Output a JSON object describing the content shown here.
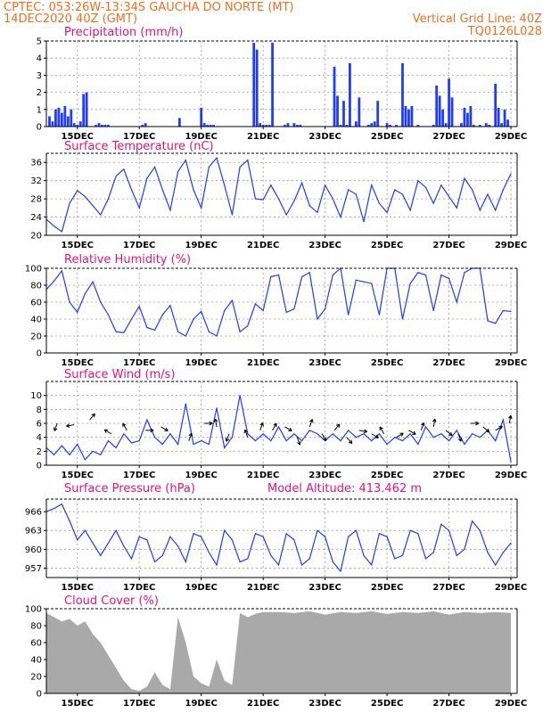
{
  "header": {
    "line1_left": "CPTEC:   053:26W-13:34S   GAUCHA DO NORTE (MT)",
    "line2_left": "14DEC2020 40Z (GMT)",
    "line2_right": "Vertical Grid Line: 40Z",
    "line3_right": "TQ0126L028"
  },
  "colors": {
    "header": "#f26e1f",
    "panel_title": "#e5127d",
    "series": "#1f3bff",
    "cloud": "#a9a9a9",
    "grid": "#9a9a9a"
  },
  "chart_data": [
    {
      "id": "precip",
      "type": "bar",
      "title": "Precipitation (mm/h)",
      "ylim": [
        0,
        5
      ],
      "yticks": [
        0,
        1,
        2,
        3,
        4,
        5
      ],
      "xticks": [
        "15DEC",
        "17DEC",
        "19DEC",
        "21DEC",
        "23DEC",
        "25DEC",
        "27DEC",
        "29DEC"
      ],
      "grid": true,
      "x_days": [
        0.1,
        0.2,
        0.3,
        0.4,
        0.5,
        0.6,
        0.7,
        0.8,
        0.9,
        1.0,
        1.1,
        1.2,
        1.3,
        1.6,
        1.7,
        1.8,
        1.9,
        2.0,
        3.1,
        3.2,
        4.3,
        5.0,
        5.1,
        5.2,
        5.3,
        5.4,
        6.7,
        6.8,
        6.9,
        7.0,
        7.1,
        7.2,
        7.3,
        7.7,
        7.8,
        8.0,
        8.1,
        8.2,
        9.3,
        9.4,
        9.5,
        9.6,
        9.7,
        9.8,
        10.0,
        10.1,
        10.4,
        10.5,
        10.6,
        10.7,
        11.0,
        11.1,
        11.3,
        11.5,
        11.6,
        11.7,
        11.8,
        12.0,
        12.5,
        12.6,
        12.7,
        12.8,
        12.9,
        13.0,
        13.1,
        13.4,
        13.5,
        13.6,
        13.7,
        13.8,
        14.0,
        14.2,
        14.3,
        14.5,
        14.6,
        14.7,
        14.8,
        14.9
      ],
      "values": [
        0.6,
        0.3,
        1.0,
        1.1,
        0.8,
        1.2,
        0.6,
        1.0,
        0.2,
        0.1,
        0.3,
        1.9,
        2.0,
        0.1,
        0.2,
        0.1,
        0.1,
        0.1,
        0.1,
        0.2,
        0.5,
        1.1,
        0.2,
        0.1,
        0.1,
        0.1,
        4.9,
        4.5,
        0.2,
        0.1,
        0.1,
        0.1,
        4.9,
        0.1,
        0.2,
        0.2,
        0.1,
        0.1,
        3.5,
        1.8,
        0.1,
        1.5,
        0.1,
        3.7,
        0.3,
        1.7,
        0.1,
        0.2,
        0.3,
        1.5,
        0.2,
        0.1,
        0.1,
        3.7,
        1.2,
        1.0,
        1.2,
        0.1,
        0.1,
        2.4,
        1.8,
        1.0,
        0.2,
        2.8,
        1.7,
        0.2,
        1.1,
        0.8,
        1.2,
        0.1,
        0.1,
        0.2,
        0.1,
        2.5,
        1.1,
        0.2,
        1.0,
        0.4
      ]
    },
    {
      "id": "temp",
      "type": "line",
      "title": "Surface Temperature (nC)",
      "ylim": [
        20,
        38
      ],
      "yticks": [
        20,
        24,
        28,
        32,
        36
      ],
      "xticks": [
        "15DEC",
        "17DEC",
        "19DEC",
        "21DEC",
        "23DEC",
        "25DEC",
        "27DEC",
        "29DEC"
      ],
      "grid": true,
      "x_days": [
        0,
        0.25,
        0.5,
        0.75,
        1.0,
        1.25,
        1.5,
        1.75,
        2.0,
        2.25,
        2.5,
        2.75,
        3.0,
        3.25,
        3.5,
        3.75,
        4.0,
        4.25,
        4.5,
        4.75,
        5.0,
        5.25,
        5.5,
        5.75,
        6.0,
        6.25,
        6.5,
        6.75,
        7.0,
        7.25,
        7.5,
        7.75,
        8.0,
        8.25,
        8.5,
        8.75,
        9.0,
        9.25,
        9.5,
        9.75,
        10.0,
        10.25,
        10.5,
        10.75,
        11.0,
        11.25,
        11.5,
        11.75,
        12.0,
        12.25,
        12.5,
        12.75,
        13.0,
        13.25,
        13.5,
        13.75,
        14.0,
        14.25,
        14.5,
        14.75,
        15.0
      ],
      "values": [
        23.5,
        22.0,
        20.8,
        27.0,
        29.8,
        28.5,
        26.5,
        24.5,
        28.0,
        33.0,
        34.5,
        30.0,
        26.0,
        32.5,
        35.0,
        30.0,
        25.5,
        34.0,
        36.5,
        30.0,
        26.0,
        35.0,
        37.0,
        31.0,
        24.5,
        35.0,
        36.5,
        28.0,
        27.8,
        31.0,
        28.0,
        24.5,
        27.5,
        31.5,
        26.5,
        25.0,
        31.0,
        28.0,
        24.0,
        30.0,
        29.0,
        23.0,
        31.0,
        27.0,
        25.0,
        30.0,
        29.0,
        25.5,
        32.0,
        30.5,
        27.0,
        31.0,
        28.5,
        26.0,
        32.5,
        30.0,
        25.5,
        29.0,
        25.5,
        30.0,
        33.5
      ]
    },
    {
      "id": "rh",
      "type": "line",
      "title": "Relative Humidity (%)",
      "ylim": [
        0,
        100
      ],
      "yticks": [
        0,
        20,
        40,
        60,
        80,
        100
      ],
      "xticks": [
        "15DEC",
        "17DEC",
        "19DEC",
        "21DEC",
        "23DEC",
        "25DEC",
        "27DEC",
        "29DEC"
      ],
      "grid": true,
      "x_days": [
        0,
        0.25,
        0.5,
        0.75,
        1.0,
        1.25,
        1.5,
        1.75,
        2.0,
        2.25,
        2.5,
        2.75,
        3.0,
        3.25,
        3.5,
        3.75,
        4.0,
        4.25,
        4.5,
        4.75,
        5.0,
        5.25,
        5.5,
        5.75,
        6.0,
        6.25,
        6.5,
        6.75,
        7.0,
        7.25,
        7.5,
        7.75,
        8.0,
        8.25,
        8.5,
        8.75,
        9.0,
        9.25,
        9.5,
        9.75,
        10.0,
        10.25,
        10.5,
        10.75,
        11.0,
        11.25,
        11.5,
        11.75,
        12.0,
        12.25,
        12.5,
        12.75,
        13.0,
        13.25,
        13.5,
        13.75,
        14.0,
        14.25,
        14.5,
        14.75,
        15.0
      ],
      "values": [
        75,
        85,
        97,
        60,
        48,
        70,
        84,
        60,
        45,
        25,
        24,
        40,
        55,
        30,
        27,
        45,
        56,
        25,
        20,
        40,
        49,
        25,
        20,
        50,
        62,
        25,
        32,
        58,
        50,
        90,
        92,
        48,
        52,
        90,
        95,
        40,
        52,
        92,
        100,
        45,
        86,
        84,
        82,
        45,
        100,
        100,
        40,
        82,
        95,
        92,
        50,
        92,
        88,
        60,
        95,
        100,
        100,
        38,
        35,
        50,
        49
      ]
    },
    {
      "id": "wind",
      "type": "line",
      "title": "Surface Wind (m/s)",
      "ylim": [
        0,
        12
      ],
      "yticks": [
        0,
        2,
        4,
        6,
        8,
        10
      ],
      "xticks": [
        "15DEC",
        "17DEC",
        "19DEC",
        "21DEC",
        "23DEC",
        "25DEC",
        "27DEC",
        "29DEC"
      ],
      "grid": true,
      "x_days": [
        0,
        0.25,
        0.5,
        0.75,
        1.0,
        1.25,
        1.5,
        1.75,
        2.0,
        2.25,
        2.5,
        2.75,
        3.0,
        3.25,
        3.5,
        3.75,
        4.0,
        4.25,
        4.5,
        4.75,
        5.0,
        5.25,
        5.5,
        5.75,
        6.0,
        6.25,
        6.5,
        6.75,
        7.0,
        7.25,
        7.5,
        7.75,
        8.0,
        8.25,
        8.5,
        8.75,
        9.0,
        9.25,
        9.5,
        9.75,
        10.0,
        10.25,
        10.5,
        10.75,
        11.0,
        11.25,
        11.5,
        11.75,
        12.0,
        12.25,
        12.5,
        12.75,
        13.0,
        13.25,
        13.5,
        13.75,
        14.0,
        14.25,
        14.5,
        14.75,
        15.0
      ],
      "values": [
        2.5,
        1.5,
        2.8,
        1.5,
        3.0,
        0.8,
        2.0,
        1.5,
        3.5,
        2.5,
        4.5,
        3.2,
        3.5,
        6.5,
        4.0,
        3.0,
        4.5,
        3.0,
        8.8,
        3.0,
        3.5,
        3.0,
        8.2,
        2.5,
        4.0,
        10.0,
        4.5,
        3.5,
        4.5,
        3.5,
        5.5,
        3.5,
        4.5,
        3.5,
        5.0,
        4.5,
        3.5,
        4.5,
        3.5,
        5.0,
        4.0,
        4.5,
        3.5,
        4.5,
        3.0,
        4.0,
        3.5,
        4.5,
        3.0,
        5.5,
        4.0,
        4.5,
        3.5,
        5.0,
        3.0,
        4.5,
        4.0,
        5.0,
        3.5,
        6.5,
        0.5
      ],
      "arrows": {
        "x_days": [
          0.35,
          0.9,
          1.4,
          2.1,
          2.6,
          3.2,
          3.7,
          4.6,
          5.1,
          5.5,
          5.9,
          6.5,
          6.9,
          7.3,
          7.7,
          8.1,
          8.5,
          8.9,
          9.3,
          9.7,
          10.1,
          10.5,
          10.9,
          11.3,
          11.7,
          12.1,
          12.5,
          12.9,
          13.3,
          13.7,
          14.1,
          14.5,
          14.95
        ],
        "speed": [
          6.0,
          5.8,
          6.5,
          4.5,
          5.0,
          5.0,
          5.5,
          3.5,
          6.0,
          5.5,
          4.5,
          4.0,
          5.0,
          5.0,
          5.5,
          4.0,
          5.5,
          4.5,
          5.0,
          4.0,
          5.0,
          4.5,
          4.5,
          4.0,
          5.0,
          5.0,
          5.5,
          5.0,
          4.5,
          6.0,
          5.5,
          5.0,
          6.0
        ],
        "dir_deg": [
          200,
          260,
          40,
          300,
          330,
          90,
          120,
          20,
          90,
          350,
          200,
          340,
          20,
          30,
          120,
          160,
          20,
          150,
          40,
          140,
          100,
          120,
          330,
          60,
          120,
          20,
          10,
          130,
          160,
          90,
          130,
          60,
          10
        ]
      }
    },
    {
      "id": "pressure",
      "type": "line",
      "title": "Surface Pressure (hPa)",
      "annotation": "Model Altitude: 413.462 m",
      "ylim": [
        955.5,
        968
      ],
      "yticks": [
        957,
        960,
        963,
        966
      ],
      "xticks": [
        "15DEC",
        "17DEC",
        "19DEC",
        "21DEC",
        "23DEC",
        "25DEC",
        "27DEC",
        "29DEC"
      ],
      "grid": true,
      "x_days": [
        0,
        0.25,
        0.5,
        0.75,
        1.0,
        1.25,
        1.5,
        1.75,
        2.0,
        2.25,
        2.5,
        2.75,
        3.0,
        3.25,
        3.5,
        3.75,
        4.0,
        4.25,
        4.5,
        4.75,
        5.0,
        5.25,
        5.5,
        5.75,
        6.0,
        6.25,
        6.5,
        6.75,
        7.0,
        7.25,
        7.5,
        7.75,
        8.0,
        8.25,
        8.5,
        8.75,
        9.0,
        9.25,
        9.5,
        9.75,
        10.0,
        10.25,
        10.5,
        10.75,
        11.0,
        11.25,
        11.5,
        11.75,
        12.0,
        12.25,
        12.5,
        12.75,
        13.0,
        13.25,
        13.5,
        13.75,
        14.0,
        14.25,
        14.5,
        14.75,
        15.0
      ],
      "values": [
        966.0,
        966.5,
        967.2,
        964.5,
        961.5,
        963.0,
        961.0,
        959.0,
        961.0,
        963.0,
        960.5,
        958.5,
        962.0,
        961.5,
        958.0,
        959.0,
        962.0,
        960.5,
        958.0,
        962.5,
        962.0,
        959.5,
        957.5,
        963.0,
        961.5,
        958.0,
        958.5,
        962.5,
        962.0,
        959.0,
        957.5,
        962.5,
        961.5,
        957.5,
        958.5,
        963.0,
        962.0,
        958.0,
        956.5,
        962.0,
        963.0,
        959.0,
        957.5,
        962.5,
        962.0,
        958.5,
        959.0,
        963.0,
        962.5,
        958.5,
        959.5,
        964.0,
        963.0,
        959.0,
        960.0,
        964.5,
        963.0,
        959.5,
        957.5,
        959.5,
        961.0
      ]
    },
    {
      "id": "cloud",
      "type": "area",
      "title": "Cloud Cover (%)",
      "ylim": [
        0,
        100
      ],
      "yticks": [
        0,
        20,
        40,
        60,
        80,
        100
      ],
      "xticks": [
        "15DEC",
        "17DEC",
        "19DEC",
        "21DEC",
        "23DEC",
        "25DEC",
        "27DEC",
        "29DEC"
      ],
      "grid": false,
      "x_days": [
        0,
        0.25,
        0.5,
        0.75,
        1.0,
        1.25,
        1.5,
        1.75,
        2.0,
        2.25,
        2.5,
        2.75,
        3.0,
        3.25,
        3.5,
        3.75,
        4.0,
        4.25,
        4.5,
        4.75,
        5.0,
        5.25,
        5.5,
        5.75,
        6.0,
        6.25,
        6.5,
        6.75,
        7.0,
        7.5,
        8.0,
        8.5,
        9.0,
        9.5,
        10.0,
        10.5,
        11.0,
        11.5,
        12.0,
        12.5,
        13.0,
        13.5,
        14.0,
        14.5,
        15.0
      ],
      "values": [
        95,
        90,
        85,
        88,
        80,
        85,
        70,
        60,
        45,
        30,
        15,
        5,
        3,
        8,
        25,
        10,
        5,
        90,
        60,
        20,
        12,
        8,
        40,
        15,
        10,
        95,
        90,
        94,
        96,
        96,
        95,
        97,
        93,
        96,
        95,
        97,
        94,
        96,
        95,
        97,
        93,
        96,
        95,
        96,
        95
      ]
    }
  ]
}
